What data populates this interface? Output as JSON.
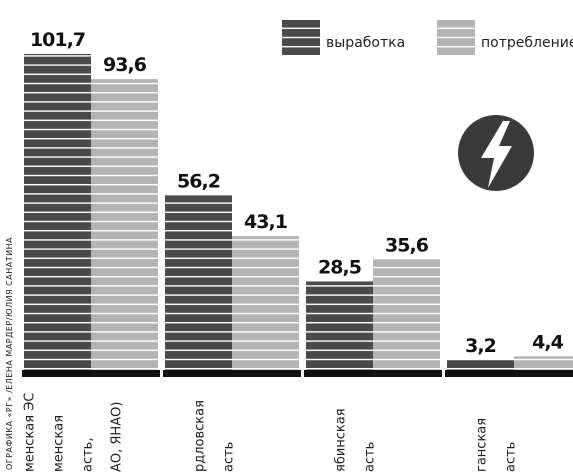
{
  "chart_data": {
    "type": "bar",
    "credit": "ОГРАФИКА «РГ» /ЕЛЕНА МАРДЕР/ЮЛИЯ САНАТИНА",
    "categories": [
      [
        "менская ЭС",
        "менская",
        "асть,",
        "АО, ЯНАО)"
      ],
      [
        "рдловская",
        "асть"
      ],
      [
        "ябинская",
        "асть"
      ],
      [
        "ганская",
        "асть"
      ]
    ],
    "series": [
      {
        "name": "выработка",
        "color": "#4a4a4a",
        "values": [
          101.7,
          56.2,
          28.5,
          3.2
        ],
        "value_labels": [
          "101,7",
          "56,2",
          "28,5",
          "3,2"
        ]
      },
      {
        "name": "потребление",
        "color": "#b4b4b4",
        "values": [
          93.6,
          43.1,
          35.6,
          4.4
        ],
        "value_labels": [
          "93,6",
          "43,1",
          "35,6",
          "4,4"
        ]
      }
    ]
  }
}
